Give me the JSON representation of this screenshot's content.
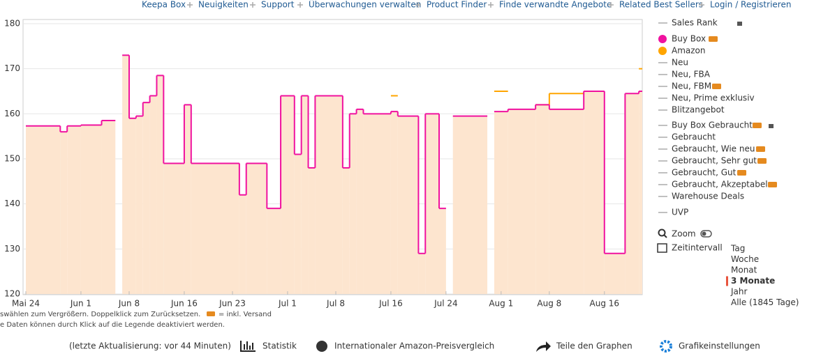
{
  "nav": [
    "Keepa Box",
    "Neuigkeiten",
    "Support",
    "Überwachungen verwalten",
    "Product Finder",
    "Finde verwandte Angebote",
    "Related Best Sellers",
    "Login / Registrieren"
  ],
  "chart_data": {
    "type": "line",
    "step": true,
    "x": [
      "05-24",
      "05-29",
      "05-30",
      "06-01",
      "06-04",
      "06-06",
      "06-07",
      "06-08",
      "06-09",
      "06-10",
      "06-11",
      "06-12",
      "06-13",
      "06-16",
      "06-17",
      "06-24",
      "06-25",
      "06-28",
      "06-30",
      "07-02",
      "07-03",
      "07-04",
      "07-05",
      "07-09",
      "07-10",
      "07-11",
      "07-12",
      "07-16",
      "07-17",
      "07-20",
      "07-21",
      "07-23",
      "07-24",
      "07-25",
      "07-30",
      "07-31",
      "08-02",
      "08-06",
      "08-08",
      "08-13",
      "08-16",
      "08-19",
      "08-21",
      "08-22"
    ],
    "series": [
      {
        "name": "Buy Box",
        "color": "#f0129f",
        "fill": "#fde5cf",
        "values": [
          157.3,
          156,
          157.3,
          157.5,
          158.5,
          null,
          173,
          159,
          159.5,
          162.5,
          164,
          168.5,
          149,
          162,
          149,
          142,
          149,
          139,
          164,
          151,
          164,
          148,
          164,
          148,
          160,
          161,
          160,
          160.5,
          159.5,
          129,
          160,
          139,
          null,
          159.5,
          null,
          160.5,
          161,
          162,
          161,
          165,
          129,
          164.5,
          165,
          165
        ]
      },
      {
        "name": "Amazon",
        "color": "#ffa500",
        "values": [
          null,
          null,
          null,
          null,
          null,
          null,
          null,
          null,
          null,
          null,
          null,
          null,
          null,
          null,
          null,
          null,
          null,
          null,
          null,
          null,
          null,
          null,
          null,
          null,
          null,
          null,
          null,
          164,
          null,
          null,
          null,
          null,
          null,
          null,
          null,
          165,
          null,
          162,
          164.5,
          null,
          null,
          null,
          170,
          170
        ]
      }
    ],
    "xlim": [
      "05-24",
      "08-22"
    ],
    "xticks": [
      {
        "value": "05-24",
        "label": "Mai 24"
      },
      {
        "value": "06-01",
        "label": "Jun 1"
      },
      {
        "value": "06-08",
        "label": "Jun 8"
      },
      {
        "value": "06-16",
        "label": "Jun 16"
      },
      {
        "value": "06-23",
        "label": "Jun 23"
      },
      {
        "value": "07-01",
        "label": "Jul 1"
      },
      {
        "value": "07-08",
        "label": "Jul 8"
      },
      {
        "value": "07-16",
        "label": "Jul 16"
      },
      {
        "value": "07-24",
        "label": "Jul 24"
      },
      {
        "value": "08-01",
        "label": "Aug 1"
      },
      {
        "value": "08-08",
        "label": "Aug 8"
      },
      {
        "value": "08-16",
        "label": "Aug 16"
      }
    ],
    "ylim": [
      120,
      180
    ],
    "yticks": [
      120,
      130,
      140,
      150,
      160,
      170,
      180
    ],
    "grid": true
  },
  "legend_other": [
    "Sales Rank",
    "Neu",
    "Neu, FBA",
    "Neu, FBM",
    "Neu, Prime exklusiv",
    "Blitzangebot",
    "Buy Box Gebraucht",
    "Gebraucht",
    "Gebraucht, Wie neu",
    "Gebraucht, Sehr gut",
    "Gebraucht, Gut",
    "Gebraucht, Akzeptabel",
    "Warehouse Deals",
    "UVP"
  ],
  "zoom": "Zoom",
  "interval": {
    "label": "Zeitintervall",
    "options": [
      "Tag",
      "Woche",
      "Monat",
      "3 Monate",
      "Jahr",
      "Alle (1845 Tage)"
    ],
    "selected": 3
  },
  "notes": [
    "swählen zum Vergrößern. Doppelklick zum Zurücksetzen.",
    "= inkl. Versand",
    "e Daten können durch Klick auf die Legende deaktiviert werden."
  ],
  "footer": {
    "updated": "(letzte Aktualisierung: vor 44 Minuten)",
    "links": [
      "Statistik",
      "Internationaler Amazon-Preisvergleich",
      "Teile den Graphen",
      "Grafikeinstellungen"
    ]
  }
}
